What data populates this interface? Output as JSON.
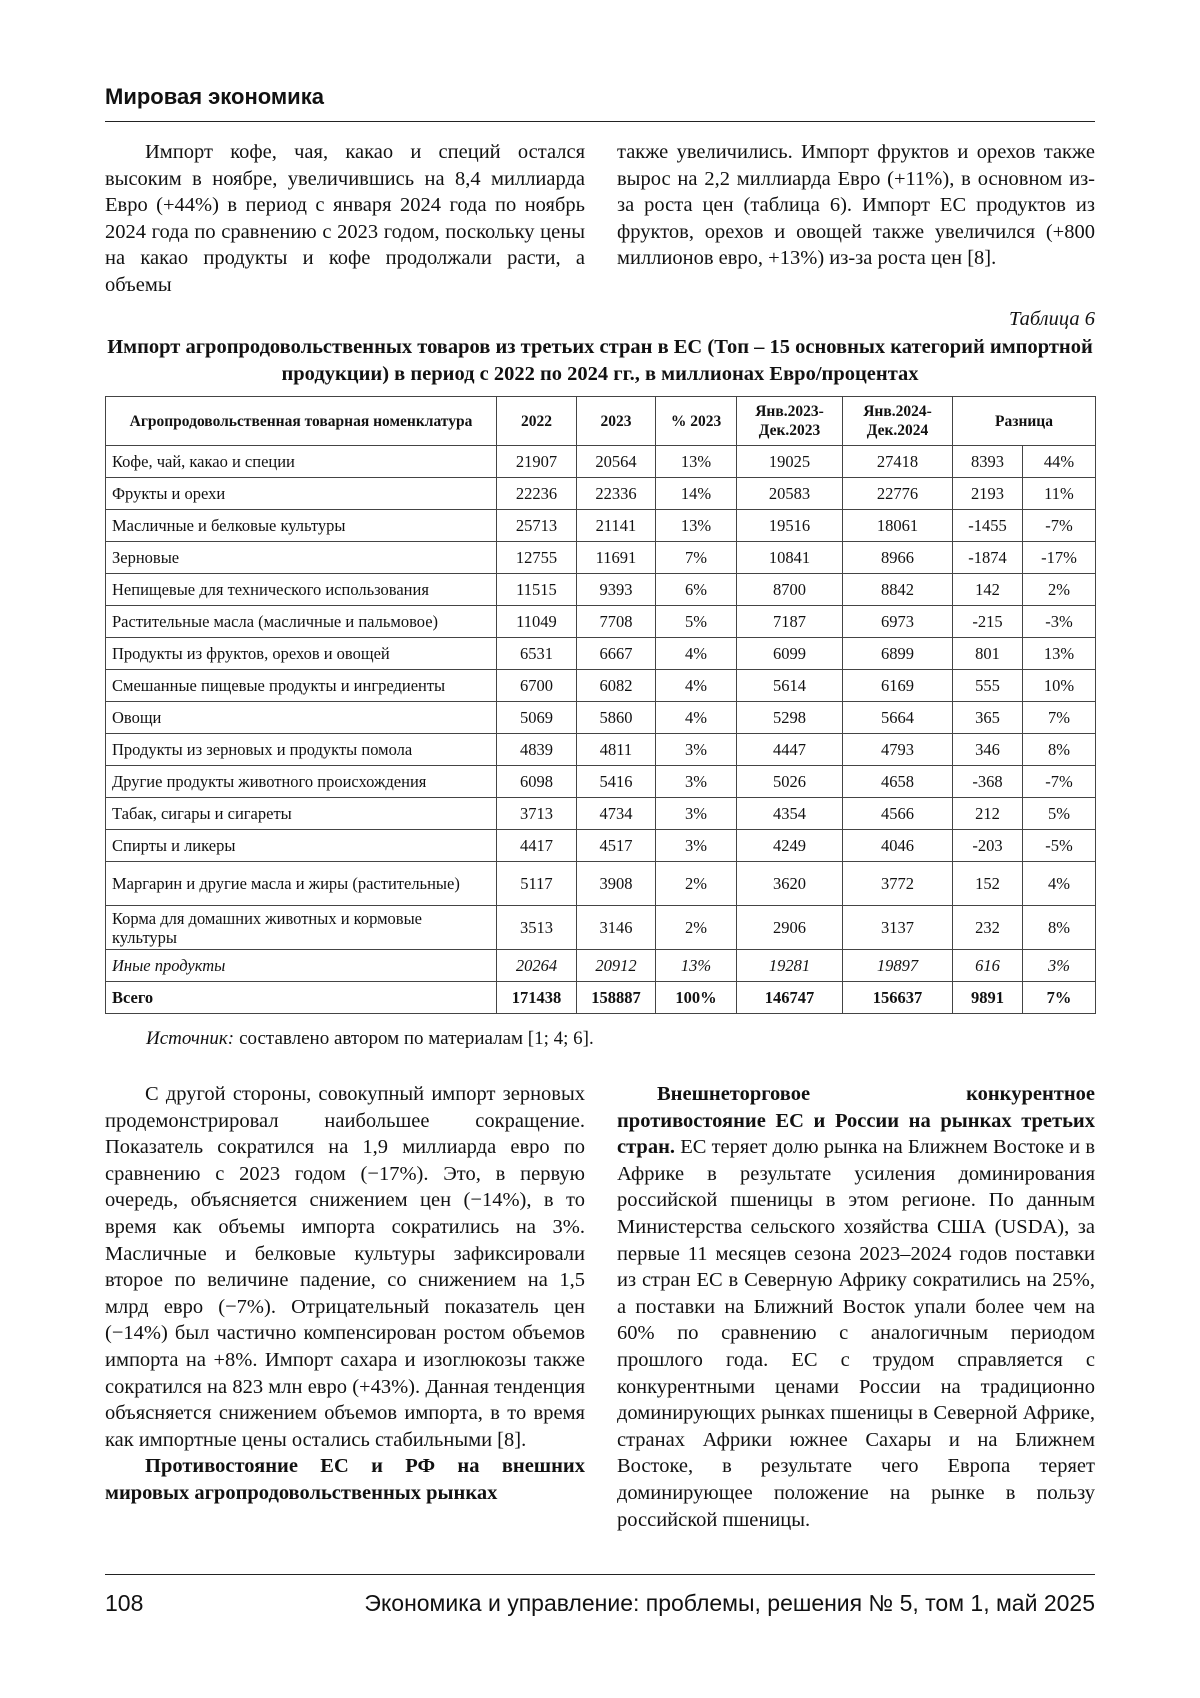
{
  "header": {
    "running_title": "Мировая экономика"
  },
  "intro": {
    "left": "Импорт кофе, чая, какао и специй остался высоким в ноябре, увеличившись на 8,4 миллиарда Евро (+44%) в период с января 2024 года по ноябрь 2024 года по сравнению с 2023 годом, поскольку цены на какао продукты и кофе продолжали расти, а объемы",
    "right": "также увеличились. Импорт фруктов и орехов также вырос на 2,2 миллиарда Евро (+11%), в основном из-за роста цен (таблица 6). Импорт ЕС продуктов из фруктов, орехов и овощей также увеличился (+800 миллионов евро, +13%) из-за роста цен [8]."
  },
  "table": {
    "label": "Таблица 6",
    "title": "Импорт агропродовольственных товаров из третьих стран в ЕС (Топ – 15 основных категорий импортной продукции) в период с 2022 по 2024 гг., в миллионах Евро/процентах",
    "columns": [
      "Агропродовольственная товарная номенклатура",
      "2022",
      "2023",
      "% 2023",
      "Янв.2023-Дек.2023",
      "Янв.2024-Дек.2024",
      "Разница"
    ],
    "rows": [
      [
        "Кофе, чай, какао и специи",
        "21907",
        "20564",
        "13%",
        "19025",
        "27418",
        "8393",
        "44%"
      ],
      [
        "Фрукты и орехи",
        "22236",
        "22336",
        "14%",
        "20583",
        "22776",
        "2193",
        "11%"
      ],
      [
        "Масличные и белковые культуры",
        "25713",
        "21141",
        "13%",
        "19516",
        "18061",
        "-1455",
        "-7%"
      ],
      [
        "Зерновые",
        "12755",
        "11691",
        "7%",
        "10841",
        "8966",
        "-1874",
        "-17%"
      ],
      [
        "Непищевые для технического использования",
        "11515",
        "9393",
        "6%",
        "8700",
        "8842",
        "142",
        "2%"
      ],
      [
        "Растительные масла (масличные и пальмовое)",
        "11049",
        "7708",
        "5%",
        "7187",
        "6973",
        "-215",
        "-3%"
      ],
      [
        "Продукты из фруктов, орехов и овощей",
        "6531",
        "6667",
        "4%",
        "6099",
        "6899",
        "801",
        "13%"
      ],
      [
        "Смешанные пищевые продукты и ингредиенты",
        "6700",
        "6082",
        "4%",
        "5614",
        "6169",
        "555",
        "10%"
      ],
      [
        "Овощи",
        "5069",
        "5860",
        "4%",
        "5298",
        "5664",
        "365",
        "7%"
      ],
      [
        "Продукты из зерновых и продукты помола",
        "4839",
        "4811",
        "3%",
        "4447",
        "4793",
        "346",
        "8%"
      ],
      [
        "Другие продукты животного происхождения",
        "6098",
        "5416",
        "3%",
        "5026",
        "4658",
        "-368",
        "-7%"
      ],
      [
        "Табак, сигары и сигареты",
        "3713",
        "4734",
        "3%",
        "4354",
        "4566",
        "212",
        "5%"
      ],
      [
        "Спирты и ликеры",
        "4417",
        "4517",
        "3%",
        "4249",
        "4046",
        "-203",
        "-5%"
      ],
      [
        "Маргарин и другие масла и жиры (растительные)",
        "5117",
        "3908",
        "2%",
        "3620",
        "3772",
        "152",
        "4%"
      ],
      [
        "Корма для домашних животных и кормовые культуры",
        "3513",
        "3146",
        "2%",
        "2906",
        "3137",
        "232",
        "8%"
      ],
      [
        "Иные продукты",
        "20264",
        "20912",
        "13%",
        "19281",
        "19897",
        "616",
        "3%"
      ],
      [
        "Всего",
        "171438",
        "158887",
        "100%",
        "146747",
        "156637",
        "9891",
        "7%"
      ]
    ],
    "source_label": "Источник:",
    "source_text": "составлено автором по материалам [1; 4; 6]."
  },
  "body": {
    "left_paragraph": "С другой стороны, совокупный импорт зерновых продемонстрировал наибольшее сокращение. Показатель сократился на 1,9 миллиарда евро по сравнению с 2023 годом (−17%). Это, в первую очередь, объясняется снижением цен (−14%), в то время как объемы импорта сократились на 3%. Масличные и белковые культуры зафиксировали второе по величине падение, со снижением на 1,5 млрд евро (−7%). Отрицательный показатель цен (−14%) был частично компенсирован ростом объемов импорта на +8%. Импорт сахара и изоглюкозы также сократился на 823 млн евро (+43%). Данная тенденция объясняется снижением объемов импорта, в то время как импортные цены остались стабильными [8].",
    "left_heading": "Противостояние ЕС и РФ на внешних мировых агропродовольственных рынках",
    "right_lead": "Внешнеторговое конкурентное противостояние ЕС и России на рынках третьих стран.",
    "right_text": "ЕС теряет долю рынка на Ближнем Востоке и в Африке в результате усиления доминирования российской пшеницы в этом регионе. По данным Министерства сельского хозяйства США (USDA), за первые 11 месяцев сезона 2023–2024 годов поставки из стран ЕС в Северную Африку сократились на 25%, а поставки на Ближний Восток упали более чем на 60% по сравнению с аналогичным периодом прошлого года. ЕС с трудом справляется с конкурентными ценами России на традиционно доминирующих рынках пшеницы в Северной Африке, странах Африки южнее Сахары и на Ближнем Востоке, в результате чего Европа теряет доминирующее положение на рынке в пользу российской пшеницы."
  },
  "footer": {
    "page_number": "108",
    "journal": "Экономика и управление: проблемы, решения № 5, том 1, май 2025"
  }
}
